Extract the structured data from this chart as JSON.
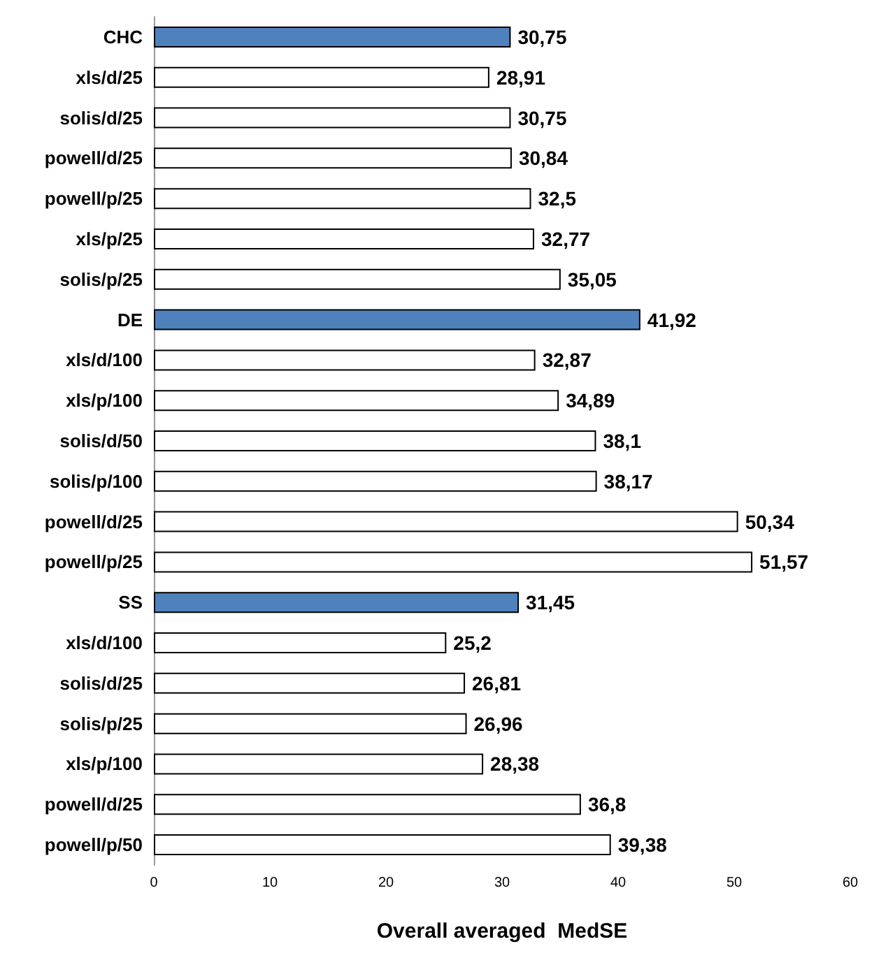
{
  "chart_data": {
    "type": "bar",
    "orientation": "horizontal",
    "xlabel": "Overall averaged  MedSE",
    "categories": [
      "CHC",
      "xls/d/25",
      "solis/d/25",
      "powell/d/25",
      "powell/p/25",
      "xls/p/25",
      "solis/p/25",
      "DE",
      "xls/d/100",
      "xls/p/100",
      "solis/d/50",
      "solis/p/100",
      "powell/d/25",
      "powell/p/25",
      "SS",
      "xls/d/100",
      "solis/d/25",
      "solis/p/25",
      "xls/p/100",
      "powell/d/25",
      "powell/p/50"
    ],
    "values": [
      30.75,
      28.91,
      30.75,
      30.84,
      32.5,
      32.77,
      35.05,
      41.92,
      32.87,
      34.89,
      38.1,
      38.17,
      50.34,
      51.57,
      31.45,
      25.2,
      26.81,
      26.96,
      28.38,
      36.8,
      39.38
    ],
    "value_labels": [
      "30,75",
      "28,91",
      "30,75",
      "30,84",
      "32,5",
      "32,77",
      "35,05",
      "41,92",
      "32,87",
      "34,89",
      "38,1",
      "38,17",
      "50,34",
      "51,57",
      "31,45",
      "25,2",
      "26,81",
      "26,96",
      "28,38",
      "36,8",
      "39,38"
    ],
    "colors": [
      "#4f81bd",
      "#ffffff",
      "#ffffff",
      "#ffffff",
      "#ffffff",
      "#ffffff",
      "#ffffff",
      "#4f81bd",
      "#ffffff",
      "#ffffff",
      "#ffffff",
      "#ffffff",
      "#ffffff",
      "#ffffff",
      "#4f81bd",
      "#ffffff",
      "#ffffff",
      "#ffffff",
      "#ffffff",
      "#ffffff",
      "#ffffff"
    ],
    "xlim": [
      0,
      60
    ],
    "xticks": [
      0,
      10,
      20,
      30,
      40,
      50,
      60
    ],
    "grid": false
  }
}
